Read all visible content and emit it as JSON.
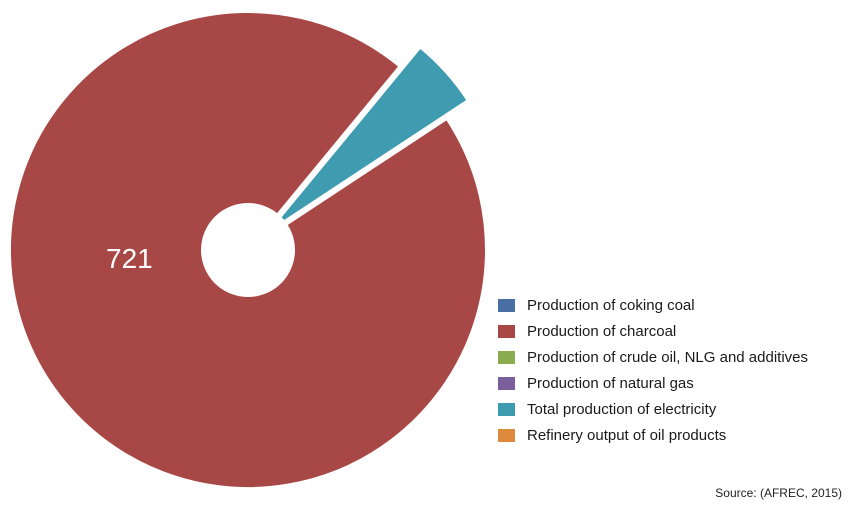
{
  "chart_data": {
    "type": "pie",
    "categories": [
      "Production of coking coal",
      "Production of charcoal",
      "Production of crude oil, NLG and additives",
      "Production of natural gas",
      "Total production of electricity",
      "Refinery output of oil products"
    ],
    "values": [
      0,
      721,
      0,
      0,
      36,
      0
    ],
    "colors": [
      "#4a6fa5",
      "#a84846",
      "#8aab4e",
      "#7a5f9c",
      "#3f9bb0",
      "#dd8a3c"
    ],
    "data_labels": [
      "",
      "721",
      "",
      "",
      "",
      ""
    ],
    "exploded": [
      false,
      false,
      false,
      false,
      true,
      false
    ],
    "donut_hole": true,
    "legend_position": "right-bottom"
  },
  "source": "Source: (AFREC, 2015)"
}
